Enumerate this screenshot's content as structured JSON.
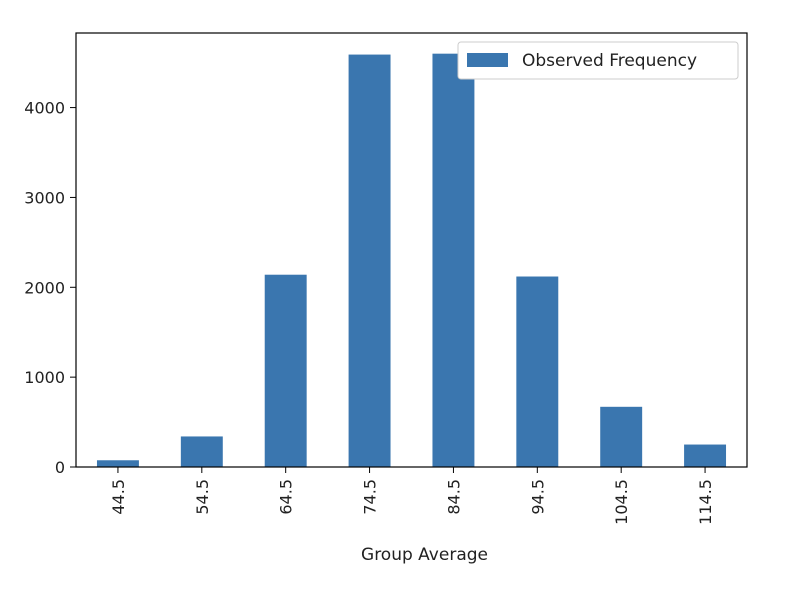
{
  "chart_data": {
    "type": "bar",
    "title": "",
    "xlabel": "Group Average",
    "ylabel": "",
    "categories": [
      "44.5",
      "54.5",
      "64.5",
      "74.5",
      "84.5",
      "94.5",
      "104.5",
      "114.5"
    ],
    "series": [
      {
        "name": "Observed Frequency",
        "color": "#3a76af",
        "values": [
          75,
          340,
          2140,
          4590,
          4600,
          2120,
          670,
          250
        ]
      }
    ],
    "ylim": [
      0,
      4830
    ],
    "yticks": [
      0,
      1000,
      2000,
      3000,
      4000
    ],
    "x_tick_rotation": "vertical",
    "legend_position": "upper-right",
    "grid": false
  }
}
